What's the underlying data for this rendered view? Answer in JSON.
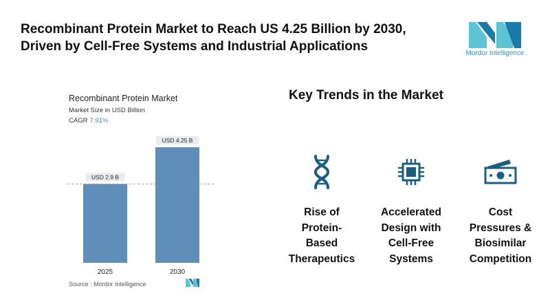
{
  "headline": {
    "line1": "Recombinant Protein Market to Reach US 4.25 Billion by 2030,",
    "line2": "Driven by Cell-Free Systems and Industrial Applications"
  },
  "logo": {
    "text": "Mordor Intelligence",
    "color": "#1c9bc4"
  },
  "chart_header": {
    "title": "Recombinant Protein Market",
    "subtitle": "Market Size in USD Billion",
    "cagr_label": "CAGR",
    "cagr_value": "7.91%"
  },
  "chart_data": {
    "type": "bar",
    "categories": [
      "2025",
      "2030"
    ],
    "values": [
      2.9,
      4.25
    ],
    "data_labels": [
      "USD 2.9 B",
      "USD 4.25 B"
    ],
    "title": "Recombinant Protein Market",
    "ylabel": "Market Size in USD Billion",
    "ylim": [
      0,
      4.25
    ],
    "bar_color": "#5f8eb8",
    "gridline": "dashed reference at 2025 value",
    "grid": false
  },
  "source": "Source :  Mordor Intelligence",
  "trends": {
    "title": "Key Trends in the Market",
    "items": [
      {
        "icon": "dna-icon",
        "lines": [
          "Rise of",
          "Protein-",
          "Based",
          "Therapeutics"
        ]
      },
      {
        "icon": "chip-icon",
        "lines": [
          "Accelerated",
          "Design with",
          "Cell-Free",
          "Systems"
        ]
      },
      {
        "icon": "money-icon",
        "lines": [
          "Cost",
          "Pressures &",
          "Biosimilar",
          "Competition"
        ]
      }
    ]
  },
  "colors": {
    "accent": "#1a5f82",
    "bar": "#5f8eb8",
    "logo_light": "#5dc4d6",
    "logo_dark": "#1b7aa8"
  }
}
